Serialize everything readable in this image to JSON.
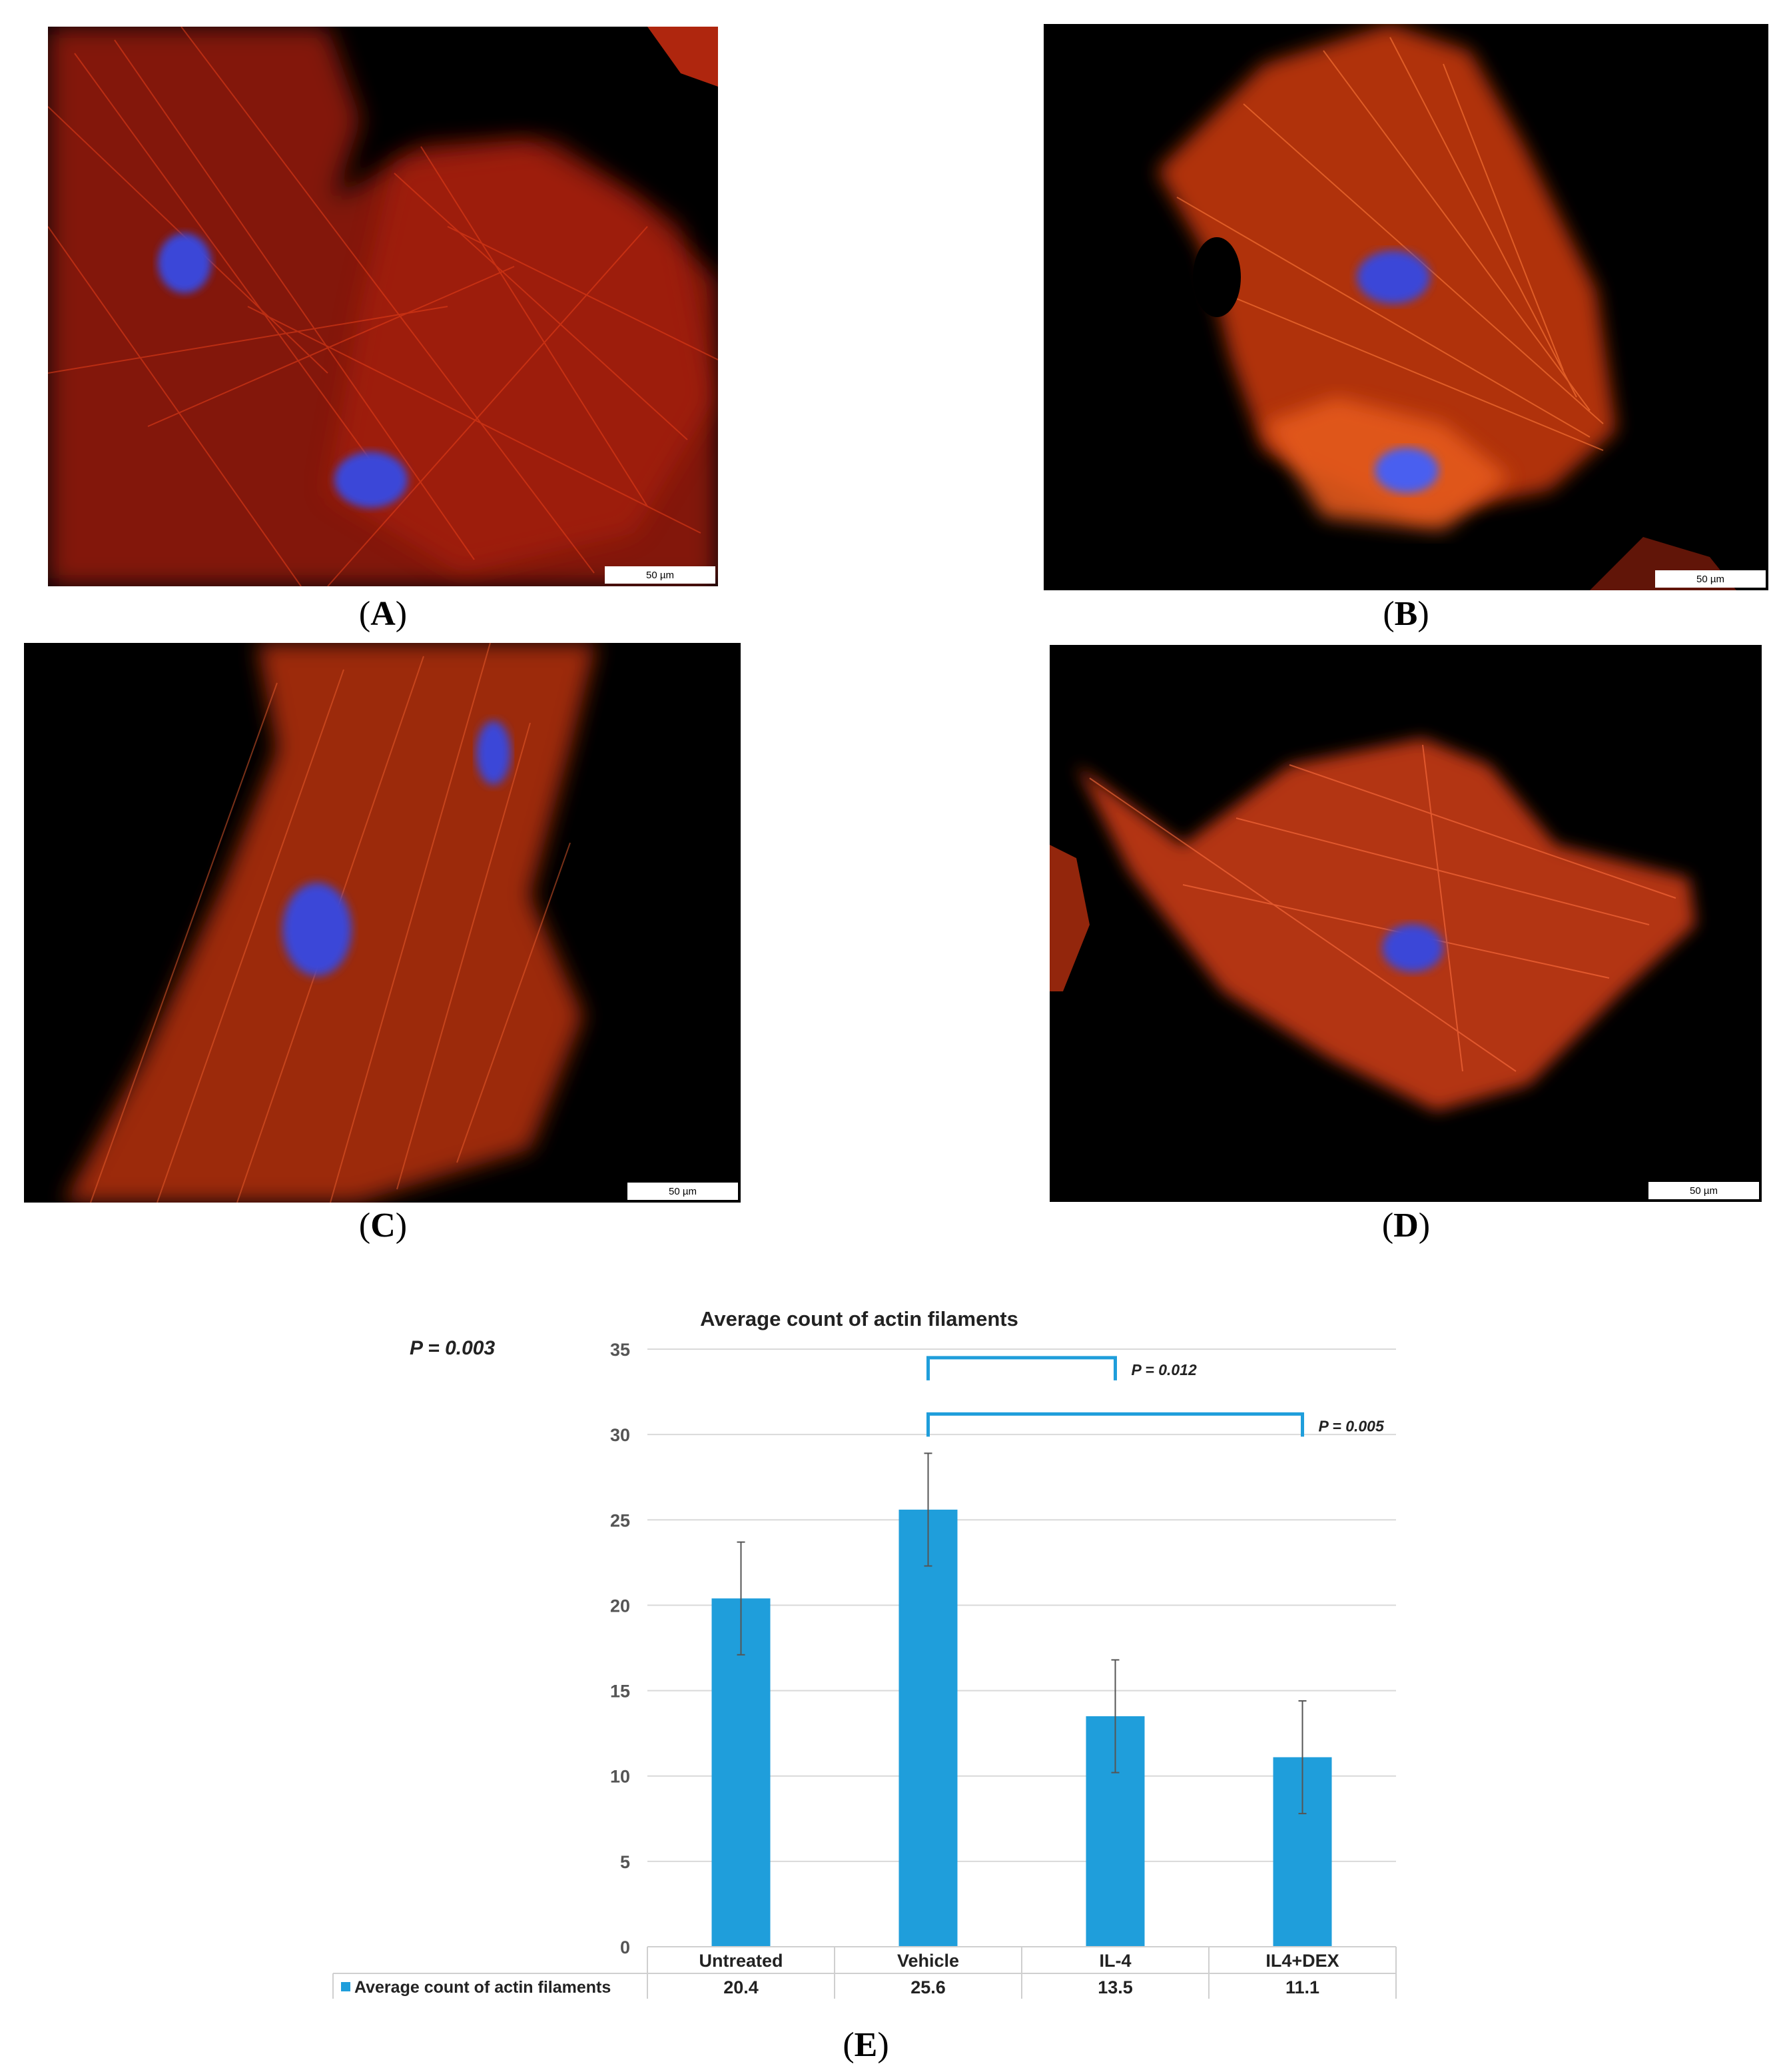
{
  "panels": [
    {
      "id": "A",
      "scale_bar": "50 µm"
    },
    {
      "id": "B",
      "scale_bar": "50 µm"
    },
    {
      "id": "C",
      "scale_bar": "50 µm"
    },
    {
      "id": "D",
      "scale_bar": "50 µm"
    }
  ],
  "captions": {
    "A": "A",
    "B": "B",
    "C": "C",
    "D": "D",
    "E": "E"
  },
  "colors": {
    "bar": "#1f9edb",
    "bracket": "#1f9edb",
    "grid": "#d9d9d9",
    "actin": "#e8401a",
    "nucleus": "#3a46d8"
  },
  "chart_data": {
    "type": "bar",
    "title": "Average count of actin filaments",
    "overall_p": "P = 0.003",
    "categories": [
      "Untreated",
      "Vehicle",
      "IL-4",
      "IL4+DEX"
    ],
    "series": [
      {
        "name": "Average count of actin filaments",
        "values": [
          20.4,
          25.6,
          13.5,
          11.1
        ]
      }
    ],
    "error_bars": [
      3.3,
      3.3,
      3.3,
      3.3
    ],
    "ylim": [
      0,
      35
    ],
    "yticks": [
      0,
      5,
      10,
      15,
      20,
      25,
      30,
      35
    ],
    "grid": true,
    "legend": "data-table",
    "table_values": [
      "20.4",
      "25.6",
      "13.5",
      "11.1"
    ],
    "comparisons": [
      {
        "from": "Vehicle",
        "to": "IL-4",
        "label": "P = 0.012",
        "level": 34.5
      },
      {
        "from": "Vehicle",
        "to": "IL4+DEX",
        "label": "P = 0.005",
        "level": 31.2
      }
    ]
  }
}
